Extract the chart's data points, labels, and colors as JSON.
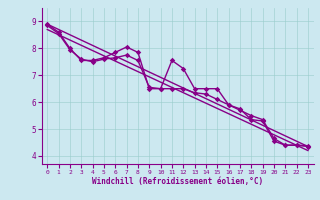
{
  "xlabel": "Windchill (Refroidissement éolien,°C)",
  "bg_color": "#cce8f0",
  "line_color": "#880088",
  "xlim": [
    -0.5,
    23.5
  ],
  "ylim": [
    3.7,
    9.5
  ],
  "xticks": [
    0,
    1,
    2,
    3,
    4,
    5,
    6,
    7,
    8,
    9,
    10,
    11,
    12,
    13,
    14,
    15,
    16,
    17,
    18,
    19,
    20,
    21,
    22,
    23
  ],
  "yticks": [
    4,
    5,
    6,
    7,
    8,
    9
  ],
  "line1_x": [
    0,
    1,
    2,
    3,
    4,
    5,
    6,
    7,
    8,
    9,
    10,
    11,
    12,
    13,
    14,
    15,
    16,
    17,
    18,
    19,
    20,
    21,
    22,
    23
  ],
  "line1_y": [
    8.9,
    8.6,
    8.0,
    7.55,
    7.55,
    7.65,
    7.85,
    8.05,
    7.85,
    6.5,
    6.5,
    7.55,
    7.25,
    6.5,
    6.5,
    6.5,
    5.9,
    5.75,
    5.35,
    5.3,
    4.55,
    4.4,
    4.4,
    4.35
  ],
  "line2_x": [
    0,
    1,
    2,
    3,
    4,
    5,
    6,
    7,
    8,
    9,
    10,
    11,
    12,
    13,
    14,
    15,
    16,
    17,
    18,
    19,
    20,
    21,
    22,
    23
  ],
  "line2_y": [
    8.85,
    8.55,
    7.95,
    7.6,
    7.5,
    7.6,
    7.65,
    7.75,
    7.55,
    6.55,
    6.5,
    6.5,
    6.5,
    6.35,
    6.3,
    6.1,
    5.9,
    5.7,
    5.5,
    5.35,
    4.65,
    4.4,
    4.4,
    4.38
  ],
  "regline1": [
    8.9,
    4.35
  ],
  "regline2": [
    8.7,
    4.2
  ]
}
